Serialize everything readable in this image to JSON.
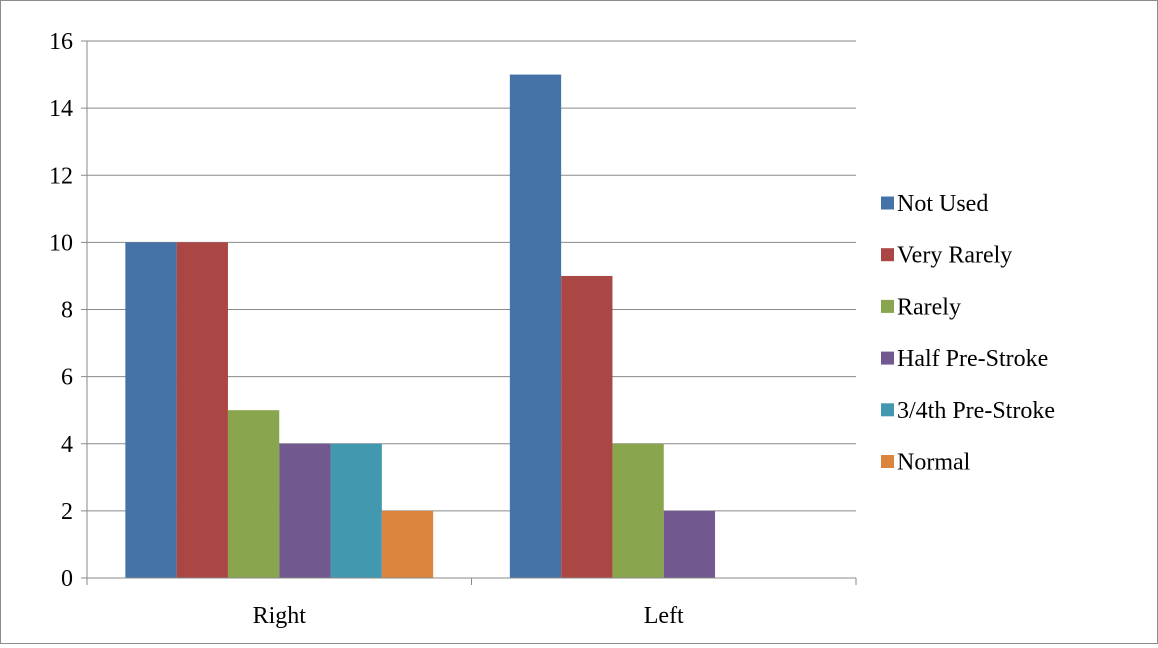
{
  "chart_data": {
    "type": "bar",
    "categories": [
      "Right",
      "Left"
    ],
    "series": [
      {
        "name": "Not Used",
        "values": [
          10,
          15
        ],
        "color": "#4572a7"
      },
      {
        "name": "Very Rarely",
        "values": [
          10,
          9
        ],
        "color": "#aa4643"
      },
      {
        "name": "Rarely",
        "values": [
          5,
          4
        ],
        "color": "#89a54e"
      },
      {
        "name": "Half Pre-Stroke",
        "values": [
          4,
          2
        ],
        "color": "#71588f"
      },
      {
        "name": "3/4th Pre-Stroke",
        "values": [
          4,
          null
        ],
        "color": "#4198af"
      },
      {
        "name": "Normal",
        "values": [
          2,
          null
        ],
        "color": "#db843d"
      }
    ],
    "ylim": [
      0,
      16
    ],
    "yticks": [
      0,
      2,
      4,
      6,
      8,
      10,
      12,
      14,
      16
    ],
    "grid": true,
    "legend_position": "right",
    "title": "",
    "xlabel": "",
    "ylabel": ""
  }
}
